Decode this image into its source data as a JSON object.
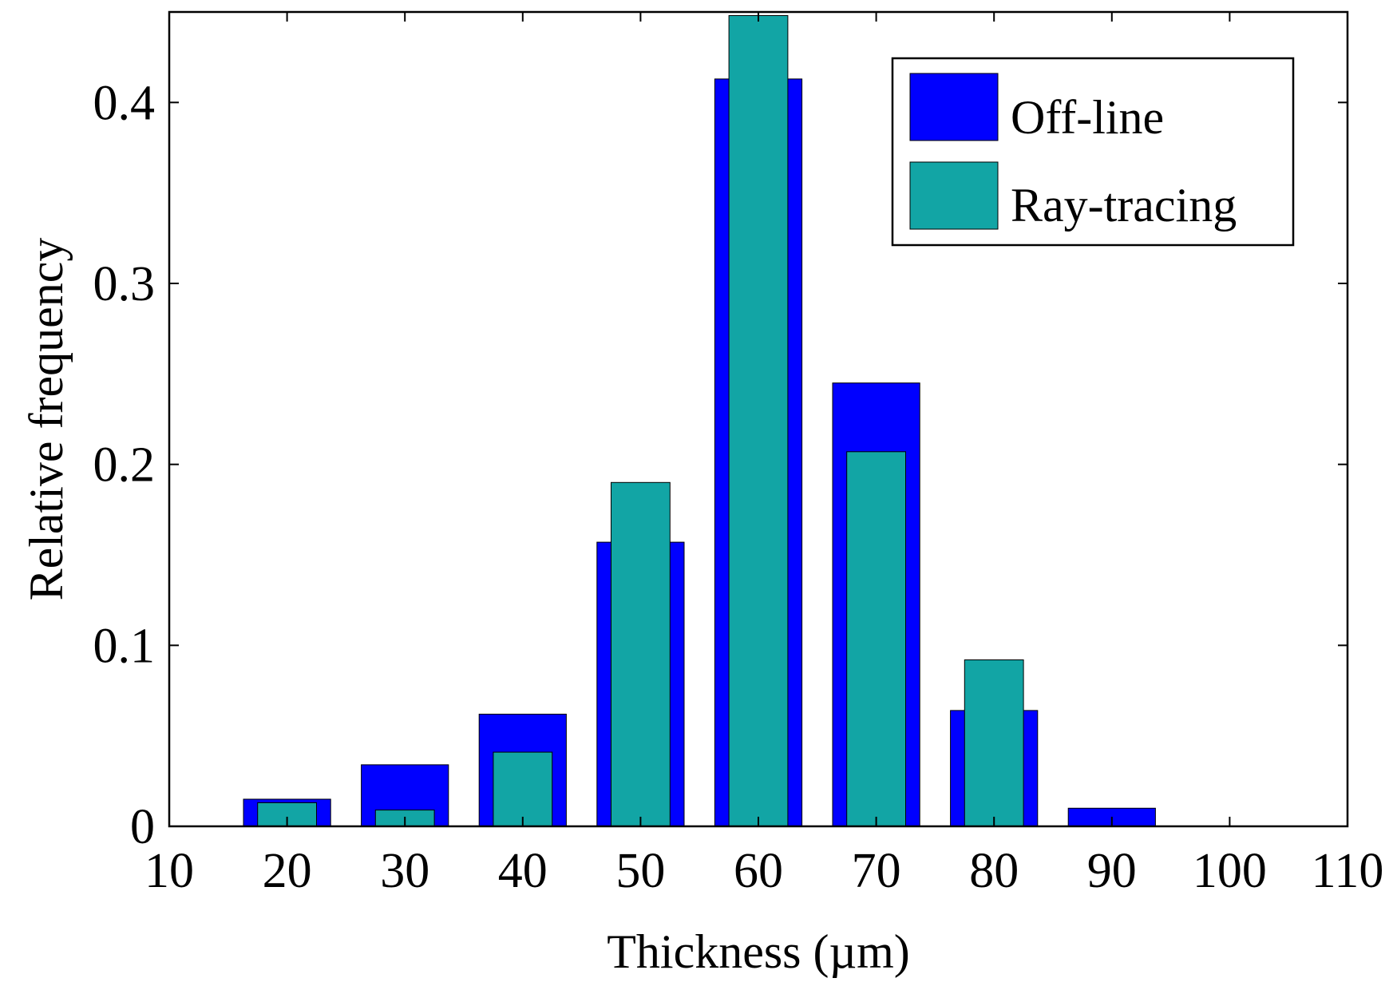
{
  "chart_data": {
    "type": "bar",
    "xlabel": "Thickness (µm)",
    "ylabel": "Relative frequency",
    "xlim": [
      10,
      110
    ],
    "ylim": [
      0,
      0.45
    ],
    "x_ticks": [
      10,
      20,
      30,
      40,
      50,
      60,
      70,
      80,
      90,
      100,
      110
    ],
    "y_ticks": [
      0,
      0.1,
      0.2,
      0.3,
      0.4
    ],
    "x_tick_labels": [
      "10",
      "20",
      "30",
      "40",
      "50",
      "60",
      "70",
      "80",
      "90",
      "100",
      "110"
    ],
    "y_tick_labels": [
      "0",
      "0.1",
      "0.2",
      "0.3",
      "0.4"
    ],
    "grid": false,
    "legend_position": "top-right",
    "categories": [
      20,
      30,
      40,
      50,
      60,
      70,
      80,
      90,
      100
    ],
    "series": [
      {
        "name": "Off-line",
        "color": "#0000ff",
        "values": [
          0.015,
          0.034,
          0.062,
          0.157,
          0.413,
          0.245,
          0.064,
          0.01,
          0.0
        ]
      },
      {
        "name": "Ray-tracing",
        "color": "#12a5a5",
        "values": [
          0.013,
          0.009,
          0.041,
          0.19,
          0.448,
          0.207,
          0.092,
          0.0,
          0.0
        ]
      }
    ]
  }
}
